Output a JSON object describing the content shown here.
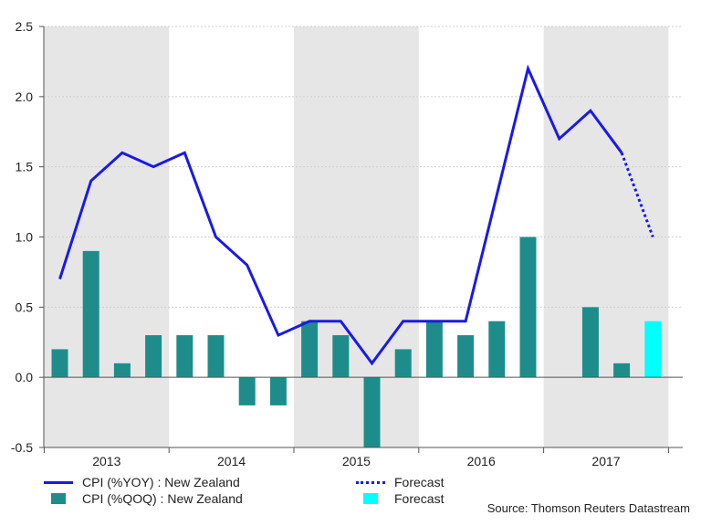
{
  "chart_data": {
    "type": "bar+line",
    "y_axis": {
      "min": -0.5,
      "max": 2.5,
      "ticks": [
        "-0.5",
        "0.0",
        "0.5",
        "1.0",
        "1.5",
        "2.0",
        "2.5"
      ],
      "tick_values": [
        -0.5,
        0,
        0.5,
        1.0,
        1.5,
        2.0,
        2.5
      ]
    },
    "years": [
      "2013",
      "2014",
      "2015",
      "2016",
      "2017"
    ],
    "shaded_years": [
      "2013",
      "2015",
      "2017"
    ],
    "quarters_per_year": 4,
    "periods": [
      "2013Q1",
      "2013Q2",
      "2013Q3",
      "2013Q4",
      "2014Q1",
      "2014Q2",
      "2014Q3",
      "2014Q4",
      "2015Q1",
      "2015Q2",
      "2015Q3",
      "2015Q4",
      "2016Q1",
      "2016Q2",
      "2016Q3",
      "2016Q4",
      "2017Q1",
      "2017Q2",
      "2017Q3",
      "2017Q4"
    ],
    "series": [
      {
        "name": "CPI (%QOQ) : New Zealand",
        "type": "bar",
        "color": "#1f8c8c",
        "values": [
          0.2,
          0.9,
          0.1,
          0.3,
          0.3,
          0.3,
          -0.2,
          -0.2,
          0.4,
          0.3,
          -0.5,
          0.2,
          0.4,
          0.3,
          0.4,
          1.0,
          null,
          0.5,
          0.1,
          null
        ]
      },
      {
        "name": "Forecast",
        "type": "bar",
        "color": "#00ffff",
        "values": [
          null,
          null,
          null,
          null,
          null,
          null,
          null,
          null,
          null,
          null,
          null,
          null,
          null,
          null,
          null,
          null,
          null,
          null,
          null,
          0.4
        ]
      },
      {
        "name": "CPI (%YOY) : New Zealand",
        "type": "line",
        "color": "#1a1ae6",
        "values": [
          0.7,
          1.4,
          1.6,
          1.5,
          1.6,
          1.0,
          0.8,
          0.3,
          0.4,
          0.4,
          0.1,
          0.4,
          0.4,
          0.4,
          1.3,
          2.2,
          1.7,
          1.9,
          1.6,
          null
        ]
      },
      {
        "name": "Forecast",
        "type": "line-dotted",
        "color": "#1a1ae6",
        "values": [
          null,
          null,
          null,
          null,
          null,
          null,
          null,
          null,
          null,
          null,
          null,
          null,
          null,
          null,
          null,
          null,
          null,
          null,
          1.6,
          1.0
        ]
      }
    ],
    "source": "Source: Thomson Reuters Datastream"
  },
  "legend": {
    "items": [
      {
        "label": "CPI (%YOY) : New Zealand",
        "style": "line"
      },
      {
        "label": "Forecast",
        "style": "dots"
      },
      {
        "label": "CPI (%QOQ) : New Zealand",
        "style": "box",
        "color": "#1f8c8c"
      },
      {
        "label": "Forecast",
        "style": "box",
        "color": "#00ffff"
      }
    ]
  }
}
